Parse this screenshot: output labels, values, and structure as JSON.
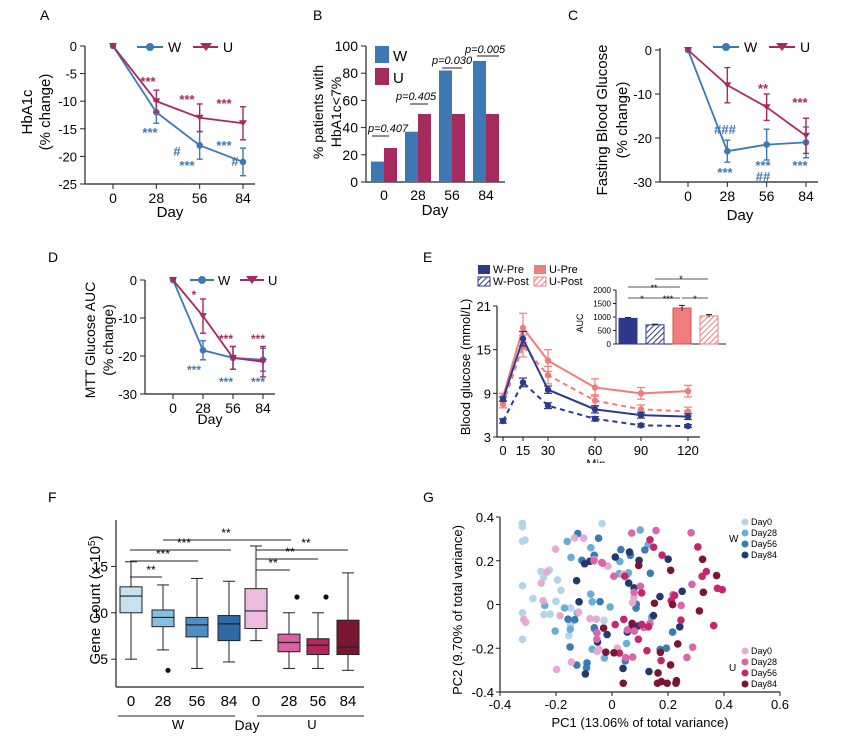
{
  "colors": {
    "W": "#3e78b2",
    "U": "#a62a5e",
    "W_dark": "#2d3a8c",
    "U_light": "#f07c7c"
  },
  "chart_data": [
    {
      "panel": "A",
      "type": "line",
      "x": [
        0,
        28,
        56,
        84
      ],
      "xlabel": "Day",
      "ylabel": "HbA1c (% change)",
      "ylim": [
        -25,
        0
      ],
      "yticks": [
        0,
        -5,
        -10,
        -15,
        -20,
        -25
      ],
      "legend": "top-right",
      "series": [
        {
          "name": "W",
          "values": [
            0,
            -12,
            -18,
            -21
          ],
          "err": [
            0,
            2,
            2.5,
            2.5
          ],
          "labels": [
            "",
            "***",
            "#\n***",
            "***\n#"
          ]
        },
        {
          "name": "U",
          "values": [
            0,
            -10,
            -13,
            -14
          ],
          "err": [
            0,
            2,
            2.5,
            3
          ],
          "labels": [
            "",
            "***",
            "***",
            "***"
          ]
        }
      ]
    },
    {
      "panel": "B",
      "type": "bar",
      "categories": [
        "0",
        "28",
        "56",
        "84"
      ],
      "xlabel": "Day",
      "ylabel": "% patients with HbA1c<7%",
      "ylim": [
        0,
        100
      ],
      "yticks": [
        0,
        20,
        40,
        60,
        80,
        100
      ],
      "legend": "top-left",
      "series": [
        {
          "name": "W",
          "values": [
            15,
            37,
            82,
            89
          ]
        },
        {
          "name": "U",
          "values": [
            25,
            50,
            50,
            50
          ]
        }
      ],
      "annotations": [
        "p=0.407",
        "p=0.405",
        "p=0.030",
        "p=0.005"
      ]
    },
    {
      "panel": "C",
      "type": "line",
      "x": [
        0,
        28,
        56,
        84
      ],
      "xlabel": "Day",
      "ylabel": "Fasting Blood Glucose (% change)",
      "ylim": [
        -30,
        0
      ],
      "yticks": [
        0,
        -10,
        -20,
        -30
      ],
      "legend": "top-right",
      "series": [
        {
          "name": "W",
          "values": [
            0,
            -23,
            -21.5,
            -21
          ],
          "err": [
            0,
            2.5,
            3.5,
            3.5
          ],
          "labels": [
            "",
            "###\n***",
            "***\n##",
            "***"
          ]
        },
        {
          "name": "U",
          "values": [
            0,
            -8,
            -13,
            -19.5
          ],
          "err": [
            0,
            4,
            3,
            4
          ],
          "labels": [
            "",
            "",
            "**",
            "***"
          ]
        }
      ]
    },
    {
      "panel": "D",
      "type": "line",
      "x": [
        0,
        28,
        56,
        84
      ],
      "xlabel": "Day",
      "ylabel": "MTT Glucose AUC (% change)",
      "ylim": [
        -30,
        0
      ],
      "yticks": [
        0,
        -10,
        -20,
        -30
      ],
      "legend": "top-right",
      "series": [
        {
          "name": "W",
          "values": [
            0,
            -18.5,
            -20.5,
            -21
          ],
          "err": [
            0,
            2.5,
            3,
            3
          ],
          "labels": [
            "",
            "***",
            "***",
            "***"
          ]
        },
        {
          "name": "U",
          "values": [
            0,
            -9.5,
            -20.5,
            -21.5
          ],
          "err": [
            0,
            4.5,
            3,
            4
          ],
          "labels": [
            "",
            "*",
            "***",
            "***"
          ]
        }
      ]
    },
    {
      "panel": "E",
      "type": "line",
      "x": [
        0,
        15,
        30,
        60,
        90,
        120
      ],
      "xlabel": "Min",
      "ylabel": "Blood glucose (mmol/L)",
      "ylim": [
        3,
        21
      ],
      "yticks": [
        3,
        9,
        15,
        21
      ],
      "legend": "top-left",
      "series": [
        {
          "name": "W-Pre",
          "values": [
            8.2,
            16.5,
            9.5,
            6.8,
            6.0,
            5.8
          ],
          "err": [
            0.3,
            1.0,
            0.5,
            0.5,
            0.4,
            0.4
          ]
        },
        {
          "name": "W-Post",
          "values": [
            5.2,
            10.5,
            7.3,
            5.5,
            4.6,
            4.5
          ],
          "err": [
            0.3,
            0.6,
            0.4,
            0.3,
            0.2,
            0.2
          ]
        },
        {
          "name": "U-Pre",
          "values": [
            8.5,
            18.0,
            13.5,
            9.8,
            9.0,
            9.3
          ],
          "err": [
            0.5,
            2.0,
            1.5,
            1.2,
            0.8,
            0.8
          ]
        },
        {
          "name": "U-Post",
          "values": [
            7.5,
            15.5,
            11.5,
            8.0,
            6.8,
            6.5
          ],
          "err": [
            0.5,
            1.5,
            1.2,
            0.8,
            0.6,
            0.6
          ]
        }
      ],
      "inset": {
        "type": "bar",
        "ylabel": "AUC",
        "ylim": [
          0,
          2000
        ],
        "yticks": [
          0,
          500,
          1000,
          1500,
          2000
        ],
        "values": [
          950,
          710,
          1330,
          1040
        ],
        "err": [
          30,
          25,
          100,
          50
        ],
        "sig": [
          "*",
          "**",
          "***",
          "*",
          "*"
        ]
      }
    },
    {
      "panel": "F",
      "type": "box",
      "categories": [
        "0",
        "28",
        "56",
        "84",
        "0",
        "28",
        "56",
        "84"
      ],
      "groups": [
        "W",
        "U"
      ],
      "xlabel": "Day",
      "ylabel": "Gene Count (x 10^5)",
      "ylim": [
        2,
        20
      ],
      "yticks": [
        5,
        10,
        15
      ],
      "boxes": [
        {
          "min": 5,
          "q1": 10,
          "median": 11.8,
          "q3": 12.8,
          "max": 15.5
        },
        {
          "min": 6,
          "q1": 8.5,
          "median": 9.5,
          "q3": 10.3,
          "max": 13,
          "outliers": [
            3.8
          ]
        },
        {
          "min": 4,
          "q1": 7.4,
          "median": 8.7,
          "q3": 9.5,
          "max": 13.7
        },
        {
          "min": 4.7,
          "q1": 7,
          "median": 8.8,
          "q3": 9.7,
          "max": 13.4
        },
        {
          "min": 7,
          "q1": 8.3,
          "median": 10.2,
          "q3": 12.6,
          "max": 17.2
        },
        {
          "min": 4,
          "q1": 5.8,
          "median": 6.8,
          "q3": 7.7,
          "max": 10,
          "outliers": [
            11.7
          ]
        },
        {
          "min": 4,
          "q1": 5.5,
          "median": 6.5,
          "q3": 7.2,
          "max": 10,
          "outliers": [
            11.7
          ]
        },
        {
          "min": 3.8,
          "q1": 5.5,
          "median": 6.3,
          "q3": 9.2,
          "max": 14.3
        }
      ],
      "sig": [
        "**",
        "***",
        "***",
        "**",
        "**",
        "**",
        "**"
      ]
    },
    {
      "panel": "G",
      "type": "scatter",
      "xlabel": "PC1 (13.06% of total variance)",
      "ylabel": "PC2 (9.70% of total variance)",
      "xlim": [
        -0.4,
        0.6
      ],
      "ylim": [
        -0.4,
        0.4
      ],
      "xticks": [
        -0.4,
        -0.2,
        0,
        0.2,
        0.4,
        0.6
      ],
      "yticks": [
        -0.4,
        -0.2,
        0,
        0.2,
        0.4
      ],
      "legend": "right",
      "series": [
        {
          "name": "Day0",
          "group": "W",
          "color": "#b4d4e8"
        },
        {
          "name": "Day28",
          "group": "W",
          "color": "#6aaed6"
        },
        {
          "name": "Day56",
          "group": "W",
          "color": "#3a7bb0"
        },
        {
          "name": "Day84",
          "group": "W",
          "color": "#23396e"
        },
        {
          "name": "Day0",
          "group": "U",
          "color": "#e6aad1"
        },
        {
          "name": "Day28",
          "group": "U",
          "color": "#d966a8"
        },
        {
          "name": "Day56",
          "group": "U",
          "color": "#c2286e"
        },
        {
          "name": "Day84",
          "group": "U",
          "color": "#7b1535"
        }
      ]
    }
  ],
  "panels": {
    "A": {
      "letter": "A",
      "title": "",
      "xlabel": "Day",
      "ylabel1": "HbA1c",
      "ylabel2": "(% change)",
      "ticks_x": [
        "0",
        "28",
        "56",
        "84"
      ],
      "ticks_y": [
        "0",
        "-5",
        "-10",
        "-15",
        "-20",
        "-25"
      ],
      "leg_w": "W",
      "leg_u": "U",
      "u_sig": [
        "***",
        "***",
        "***"
      ],
      "w_sig": [
        "***",
        "***",
        "***"
      ],
      "w_hash": [
        "#",
        "#"
      ]
    },
    "B": {
      "letter": "B",
      "xlabel": "Day",
      "ylabel1": "% patients with",
      "ylabel2": "HbA1c<7%",
      "ticks_x": [
        "0",
        "28",
        "56",
        "84"
      ],
      "ticks_y": [
        "0",
        "20",
        "40",
        "60",
        "80",
        "100"
      ],
      "leg_w": "W",
      "leg_u": "U",
      "pvals": [
        "p=0.407",
        "p=0.405",
        "p=0.030",
        "p=0.005"
      ]
    },
    "C": {
      "letter": "C",
      "xlabel": "Day",
      "ylabel1": "Fasting Blood Glucose",
      "ylabel2": "(% change)",
      "ticks_x": [
        "0",
        "28",
        "56",
        "84"
      ],
      "ticks_y": [
        "0",
        "-10",
        "-20",
        "-30"
      ],
      "leg_w": "W",
      "leg_u": "U",
      "u_sig": [
        "**",
        "***"
      ],
      "w_sig": [
        "***",
        "***",
        "***"
      ],
      "w_hash": [
        "###",
        "##"
      ]
    },
    "D": {
      "letter": "D",
      "xlabel": "Day",
      "ylabel1": "MTT Glucose AUC",
      "ylabel2": "(% change)",
      "ticks_x": [
        "0",
        "28",
        "56",
        "84"
      ],
      "ticks_y": [
        "0",
        "-10",
        "-20",
        "-30"
      ],
      "leg_w": "W",
      "leg_u": "U",
      "u_sig": [
        "*",
        "***",
        "***"
      ],
      "w_sig": [
        "***",
        "***",
        "***"
      ]
    },
    "E": {
      "letter": "E",
      "xlabel": "Min",
      "ylabel": "Blood glucose (mmol/L)",
      "ticks_x": [
        "0",
        "15",
        "30",
        "60",
        "90",
        "120"
      ],
      "ticks_y": [
        "3",
        "9",
        "15",
        "21"
      ],
      "leg": [
        "W-Pre",
        "W-Post",
        "U-Pre",
        "U-Post"
      ],
      "inset_ylabel": "AUC",
      "inset_ticks": [
        "0",
        "500",
        "1000",
        "1500",
        "2000"
      ],
      "inset_sig": [
        "*",
        "**",
        "***",
        "*",
        "*"
      ]
    },
    "F": {
      "letter": "F",
      "xlabel": "Day",
      "ylabel": "Gene Count  (x 10",
      "ylabel_sup": "5",
      "ylabel_end": ")",
      "ticks_x": [
        "0",
        "28",
        "56",
        "84",
        "0",
        "28",
        "56",
        "84"
      ],
      "ticks_y": [
        "5",
        "10",
        "15"
      ],
      "group_w": "W",
      "group_u": "U",
      "sig": [
        "**",
        "***",
        "***",
        "**",
        "**",
        "**",
        "**"
      ]
    },
    "G": {
      "letter": "G",
      "xlabel": "PC1 (13.06% of total variance)",
      "ylabel": "PC2 (9.70% of total variance)",
      "ticks_x": [
        "-0.4",
        "-0.2",
        "0",
        "0.2",
        "0.4",
        "0.6"
      ],
      "ticks_y": [
        "0.4",
        "0.2",
        "0",
        "-0.2",
        "-0.4"
      ],
      "leg_w_items": [
        "Day0",
        "Day28",
        "Day56",
        "Day84"
      ],
      "leg_w": "W",
      "leg_u_items": [
        "Day0",
        "Day28",
        "Day56",
        "Day84"
      ],
      "leg_u": "U"
    }
  }
}
